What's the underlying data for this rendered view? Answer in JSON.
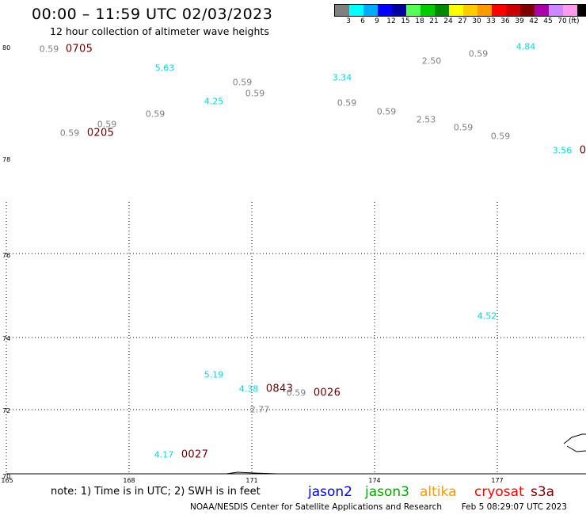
{
  "header": {
    "title": "00:00 – 11:59 UTC 02/03/2023",
    "subtitle": "12 hour collection of altimeter wave heights"
  },
  "legend": {
    "colors": [
      "#808080",
      "#00ffff",
      "#00aaff",
      "#0000ff",
      "#0000a0",
      "#55ff55",
      "#00cc00",
      "#008800",
      "#ffff00",
      "#ffcc00",
      "#ff9900",
      "#ff0000",
      "#cc0000",
      "#800000",
      "#aa00aa",
      "#cc88ff",
      "#ff99ee",
      "#000000"
    ],
    "ticks": [
      "3",
      "6",
      "9",
      "12",
      "15",
      "18",
      "21",
      "24",
      "27",
      "30",
      "33",
      "36",
      "39",
      "42",
      "45",
      "70"
    ],
    "unit": "(ft)"
  },
  "axes": {
    "lat_labels": [
      "80",
      "78",
      "76",
      "74",
      "72",
      "70"
    ],
    "lon_labels": [
      "165",
      "168",
      "171",
      "174",
      "177"
    ]
  },
  "observations": [
    {
      "text": "0.59",
      "color": "#808080"
    },
    {
      "text": "0705",
      "color": "#6b0000"
    },
    {
      "text": "5.63",
      "color": "#00d8e8"
    },
    {
      "text": "0.59",
      "color": "#808080"
    },
    {
      "text": "0.59",
      "color": "#808080"
    },
    {
      "text": "4.25",
      "color": "#00d8e8"
    },
    {
      "text": "0.59",
      "color": "#808080"
    },
    {
      "text": "0.59",
      "color": "#808080"
    },
    {
      "text": "0.59",
      "color": "#808080"
    },
    {
      "text": "0205",
      "color": "#6b0000"
    },
    {
      "text": "3.34",
      "color": "#00d8e8"
    },
    {
      "text": "0.59",
      "color": "#808080"
    },
    {
      "text": "0.59",
      "color": "#808080"
    },
    {
      "text": "2.50",
      "color": "#808080"
    },
    {
      "text": "0.59",
      "color": "#808080"
    },
    {
      "text": "4.84",
      "color": "#00d8e8"
    },
    {
      "text": "2.53",
      "color": "#808080"
    },
    {
      "text": "0.59",
      "color": "#808080"
    },
    {
      "text": "0.59",
      "color": "#808080"
    },
    {
      "text": "3.56",
      "color": "#00d8e8"
    },
    {
      "text": "0",
      "color": "#6b0000"
    },
    {
      "text": "4.52",
      "color": "#00d8e8"
    },
    {
      "text": "5.19",
      "color": "#00d8e8"
    },
    {
      "text": "4.38",
      "color": "#00d8e8"
    },
    {
      "text": "0843",
      "color": "#6b0000"
    },
    {
      "text": "0.59",
      "color": "#808080"
    },
    {
      "text": "0026",
      "color": "#6b0000"
    },
    {
      "text": "2.77",
      "color": "#808080"
    },
    {
      "text": "4.17",
      "color": "#00d8e8"
    },
    {
      "text": "0027",
      "color": "#6b0000"
    }
  ],
  "footer": {
    "note": "note: 1) Time is in UTC; 2) SWH is in feet",
    "satellites": [
      {
        "name": "jason2",
        "color": "#0000ff"
      },
      {
        "name": "jason3",
        "color": "#00aa00"
      },
      {
        "name": "altika",
        "color": "#ff9900"
      },
      {
        "name": "cryosat",
        "color": "#ff0000"
      },
      {
        "name": "s3a",
        "color": "#800000"
      }
    ],
    "credit": "NOAA/NESDIS Center for Satellite Applications and Research",
    "timestamp": "Feb  5 08:29:07 UTC 2023"
  }
}
